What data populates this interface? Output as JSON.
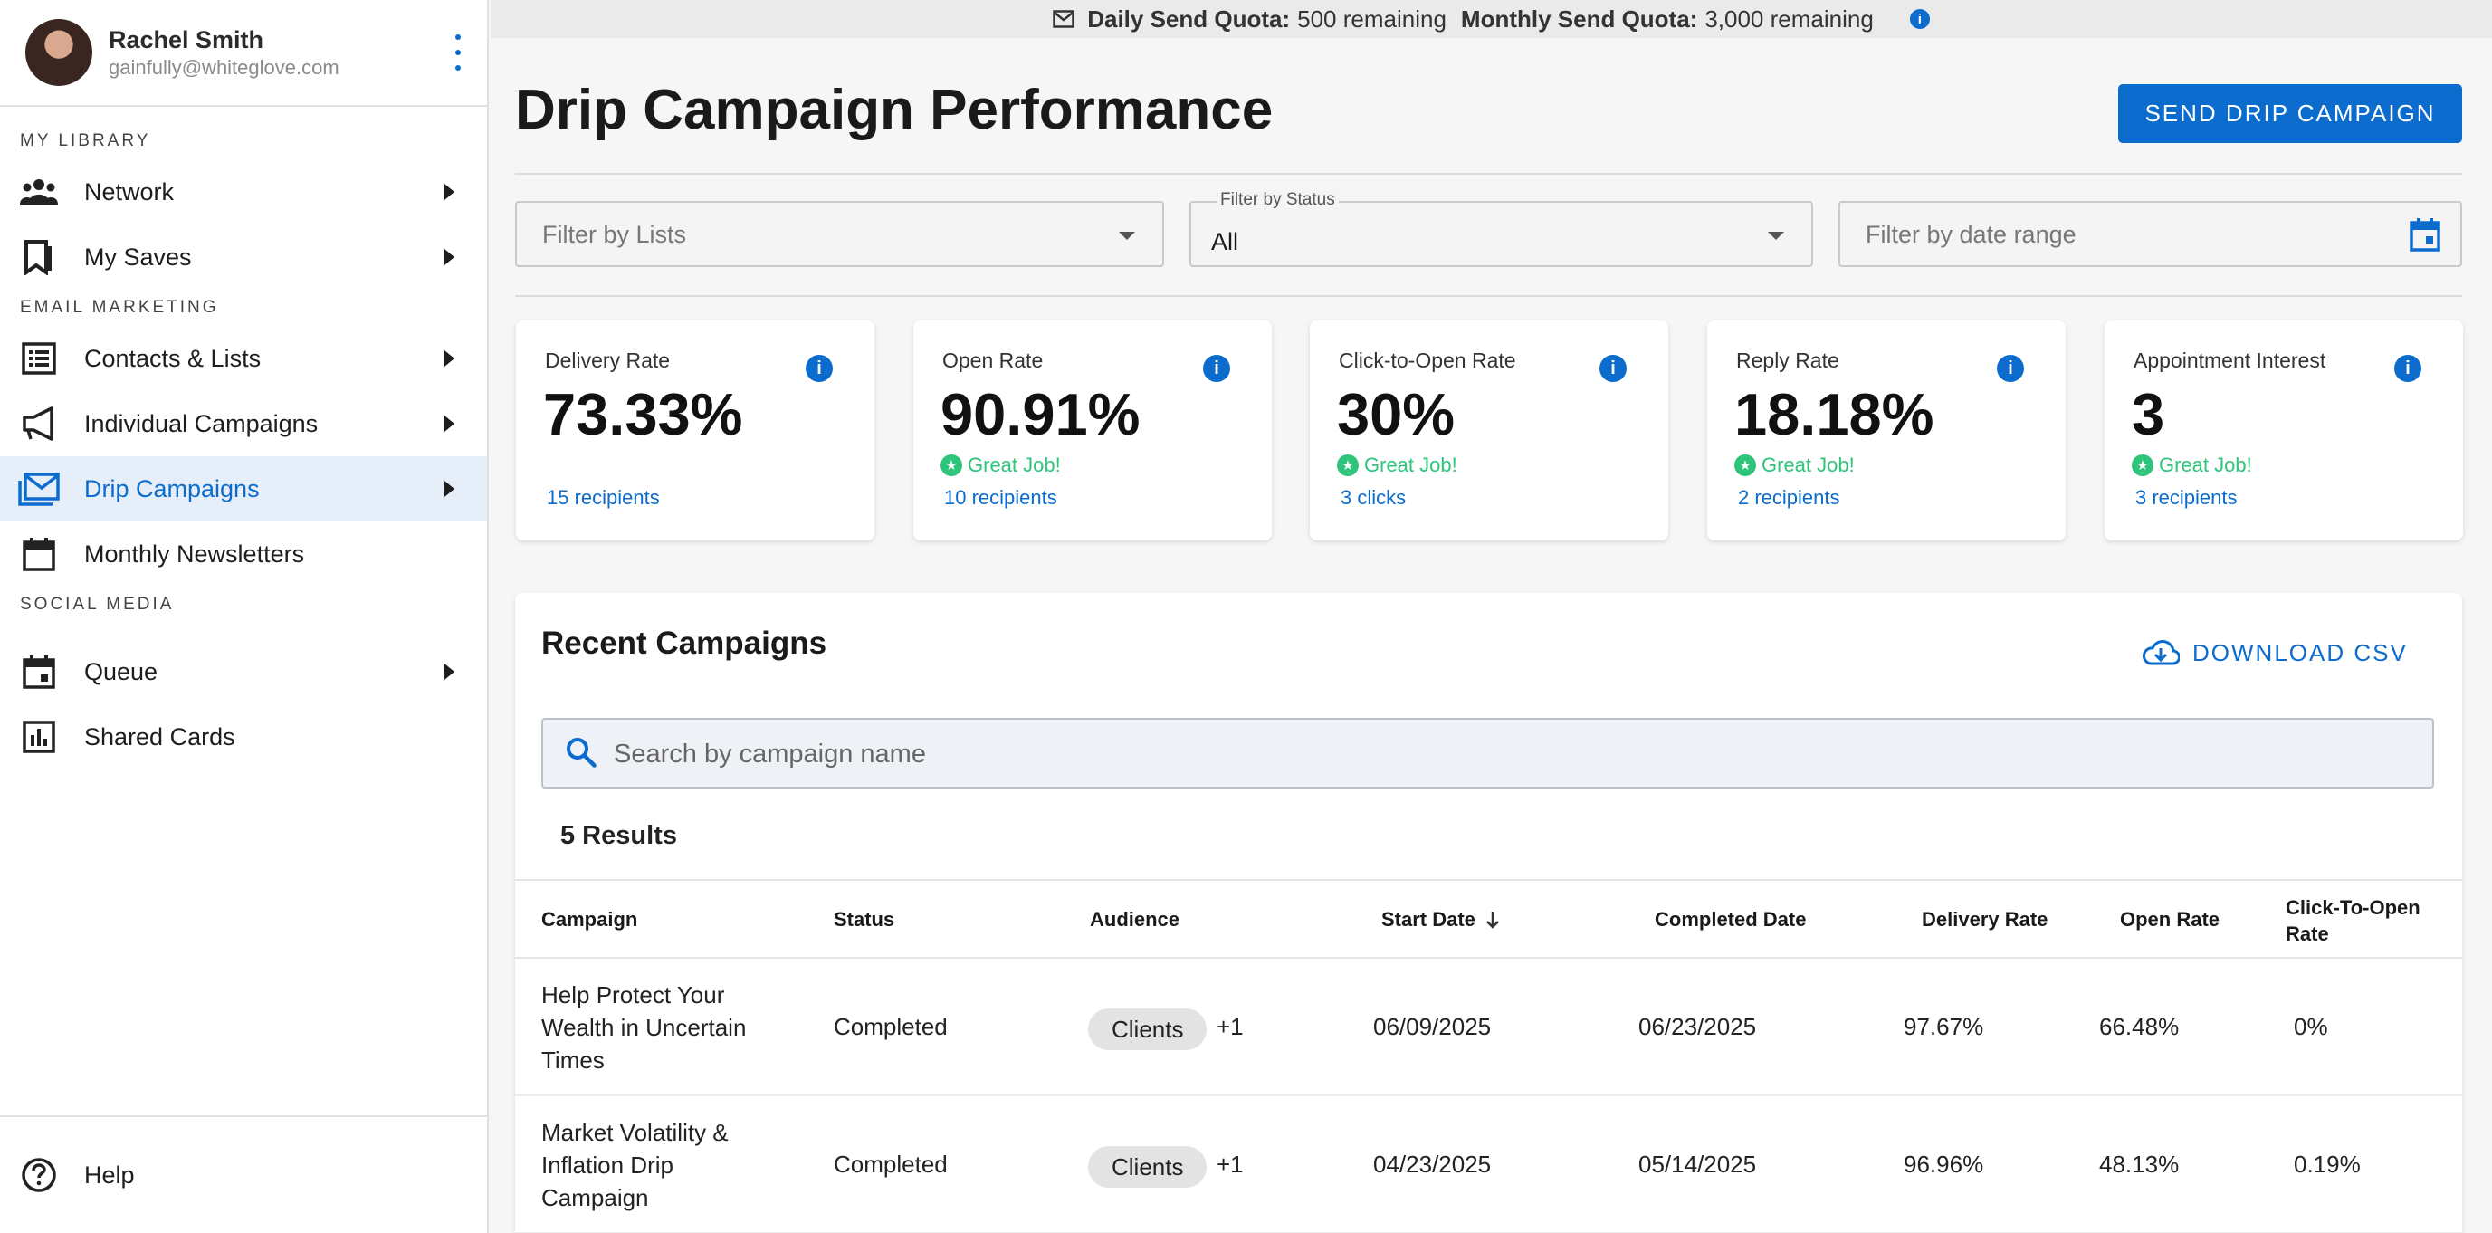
{
  "user": {
    "name": "Rachel Smith",
    "email": "gainfully@whiteglove.com"
  },
  "sidebar": {
    "sections": [
      {
        "label": "MY LIBRARY"
      },
      {
        "label": "EMAIL MARKETING"
      },
      {
        "label": "SOCIAL MEDIA"
      }
    ],
    "items": [
      {
        "label": "Network",
        "icon": "people-icon"
      },
      {
        "label": "My Saves",
        "icon": "bookmark-icon"
      },
      {
        "label": "Contacts & Lists",
        "icon": "list-icon"
      },
      {
        "label": "Individual Campaigns",
        "icon": "megaphone-icon"
      },
      {
        "label": "Drip Campaigns",
        "icon": "mail-icon",
        "active": true
      },
      {
        "label": "Monthly Newsletters",
        "icon": "calendar-icon"
      },
      {
        "label": "Queue",
        "icon": "calendar-event-icon"
      },
      {
        "label": "Shared Cards",
        "icon": "bar-chart-icon"
      }
    ],
    "help_label": "Help"
  },
  "quota": {
    "daily_label": "Daily Send Quota:",
    "daily_value": "500 remaining",
    "monthly_label": "Monthly Send Quota:",
    "monthly_value": "3,000 remaining"
  },
  "header": {
    "title": "Drip Campaign Performance",
    "send_button": "SEND DRIP CAMPAIGN"
  },
  "filters": {
    "lists_placeholder": "Filter by Lists",
    "status_label": "Filter by Status",
    "status_value": "All",
    "date_placeholder": "Filter by date range"
  },
  "metrics": [
    {
      "title": "Delivery Rate",
      "value": "73.33%",
      "badge": "",
      "sub": "15 recipients"
    },
    {
      "title": "Open Rate",
      "value": "90.91%",
      "badge": "Great Job!",
      "sub": "10 recipients"
    },
    {
      "title": "Click-to-Open Rate",
      "value": "30%",
      "badge": "Great Job!",
      "sub": "3 clicks"
    },
    {
      "title": "Reply Rate",
      "value": "18.18%",
      "badge": "Great Job!",
      "sub": "2 recipients"
    },
    {
      "title": "Appointment Interest",
      "value": "3",
      "badge": "Great Job!",
      "sub": "3 recipients"
    }
  ],
  "campaigns": {
    "title": "Recent Campaigns",
    "download_label": "DOWNLOAD CSV",
    "search_placeholder": "Search by campaign name",
    "results_label": "5 Results",
    "columns": [
      "Campaign",
      "Status",
      "Audience",
      "Start Date",
      "Completed Date",
      "Delivery Rate",
      "Open Rate",
      "Click-To-Open Rate"
    ],
    "rows": [
      {
        "campaign": "Help Protect Your Wealth in Uncertain Times",
        "status": "Completed",
        "audience": "Clients",
        "audience_more": "+1",
        "start": "06/09/2025",
        "completed": "06/23/2025",
        "delivery": "97.67%",
        "open": "66.48%",
        "cto": "0%"
      },
      {
        "campaign": "Market Volatility & Inflation Drip Campaign",
        "status": "Completed",
        "audience": "Clients",
        "audience_more": "+1",
        "start": "04/23/2025",
        "completed": "05/14/2025",
        "delivery": "96.96%",
        "open": "48.13%",
        "cto": "0.19%"
      }
    ]
  },
  "colors": {
    "accent": "#0b6cce",
    "success": "#2ec47a",
    "active_bg": "#e6eff9"
  }
}
